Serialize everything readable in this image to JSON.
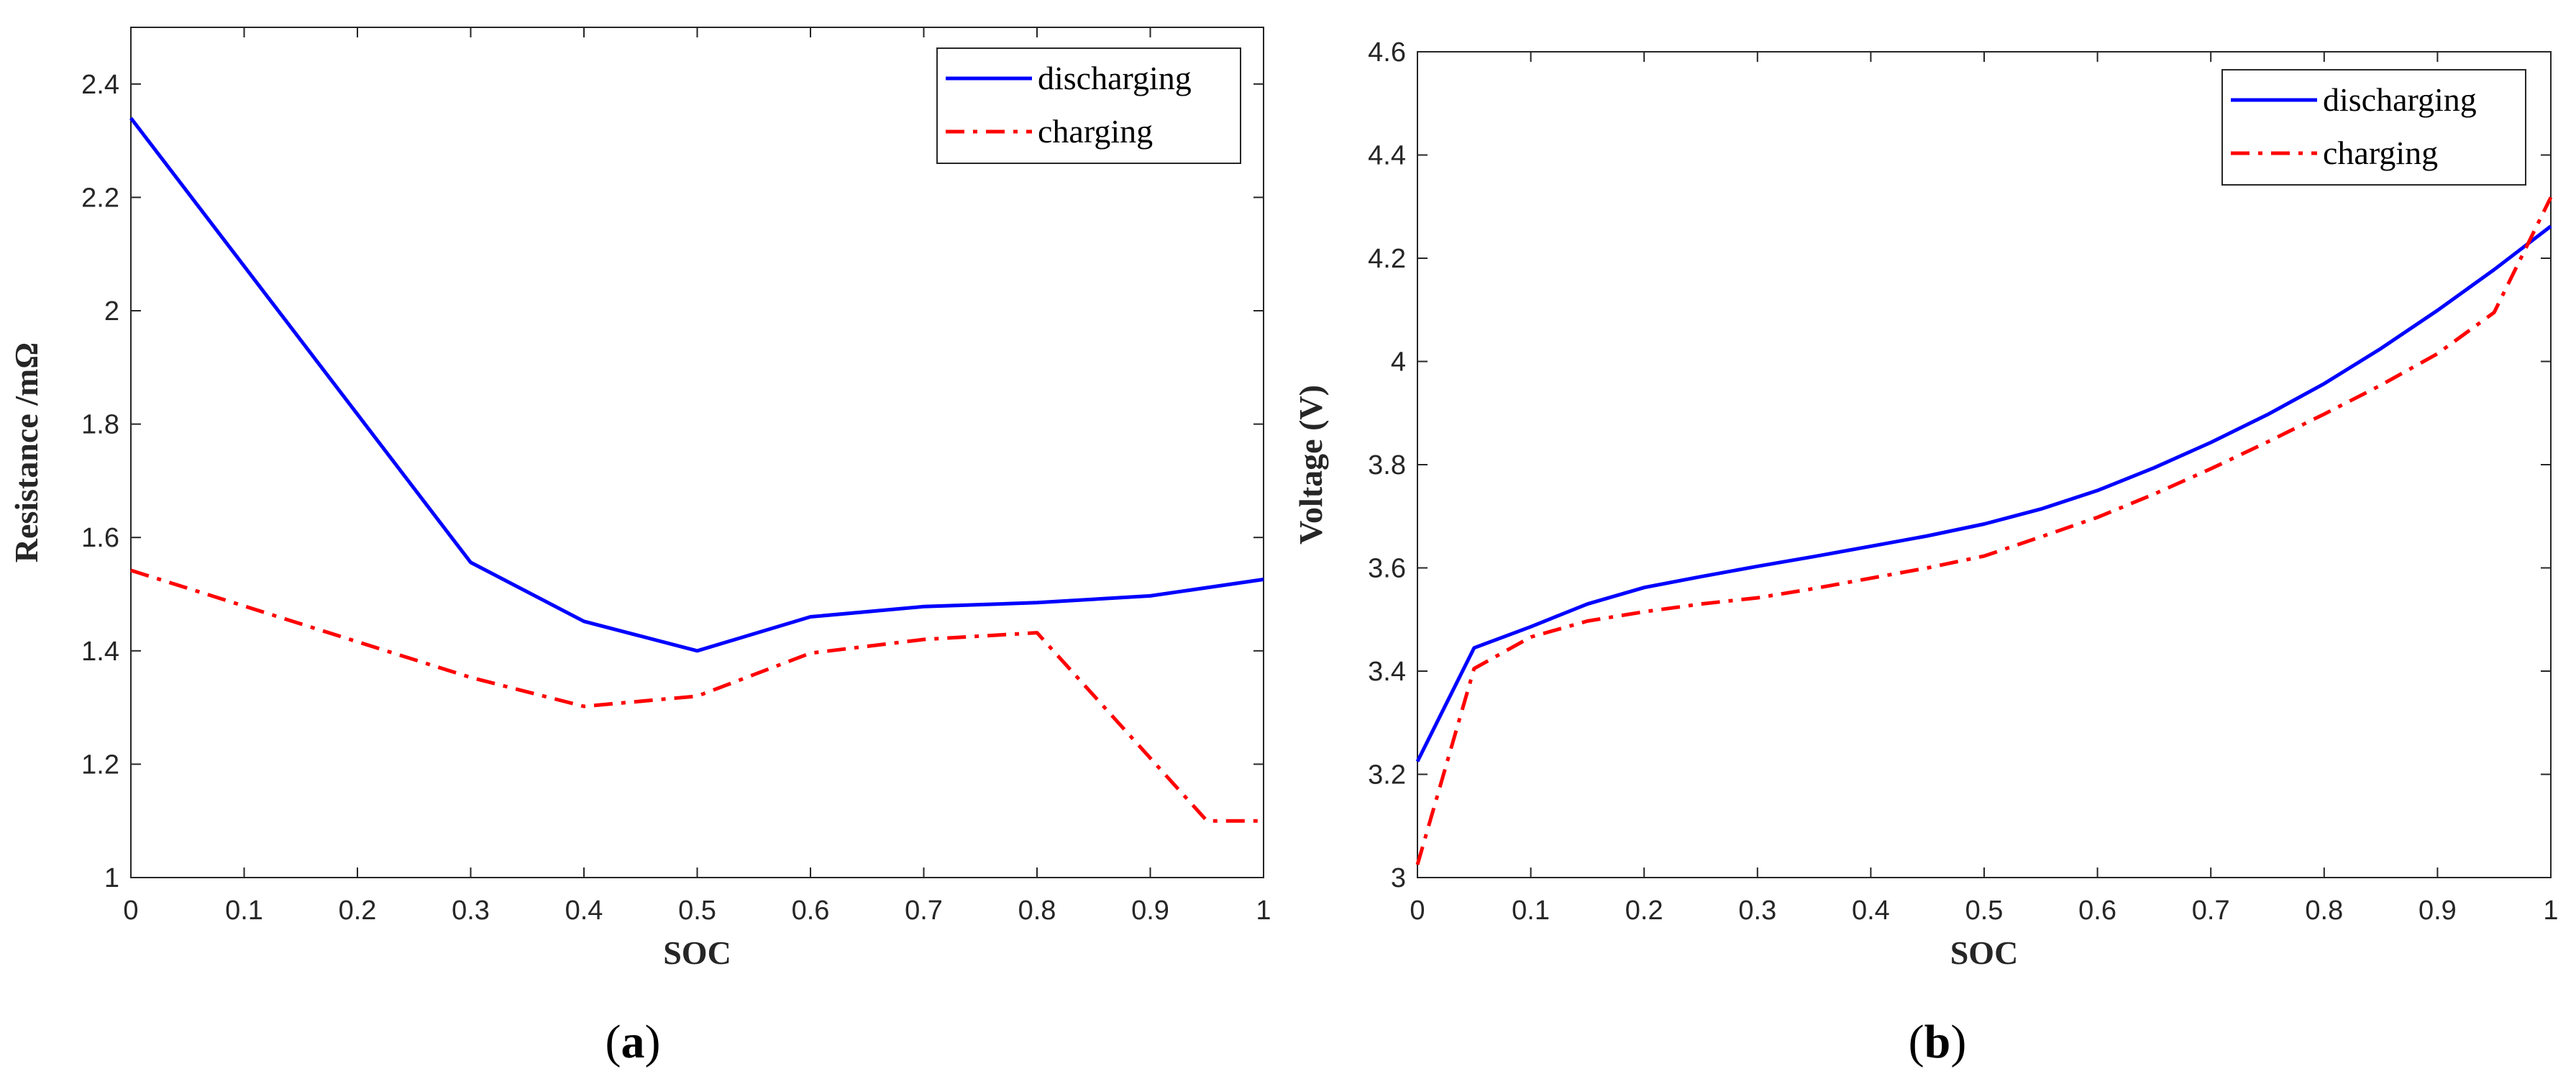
{
  "chart_data": [
    {
      "type": "line",
      "panel": "a",
      "caption_letter": "a",
      "xlabel": "SOC",
      "ylabel": "Resistance /mΩ",
      "xlim": [
        0,
        1
      ],
      "ylim": [
        1,
        2.5
      ],
      "xticks": [
        0,
        0.1,
        0.2,
        0.3,
        0.4,
        0.5,
        0.6,
        0.7,
        0.8,
        0.9,
        1
      ],
      "xtick_labels": [
        "0",
        "0.1",
        "0.2",
        "0.3",
        "0.4",
        "0.5",
        "0.6",
        "0.7",
        "0.8",
        "0.9",
        "1"
      ],
      "yticks": [
        1,
        1.2,
        1.4,
        1.6,
        1.8,
        2,
        2.2,
        2.4
      ],
      "ytick_labels": [
        "1",
        "1.2",
        "1.4",
        "1.6",
        "1.8",
        "2",
        "2.2",
        "2.4"
      ],
      "legend_position": "top-right",
      "series": [
        {
          "name": "discharging",
          "color": "#0000ff",
          "style": "solid",
          "x": [
            0,
            0.3,
            0.4,
            0.5,
            0.6,
            0.7,
            0.8,
            0.9,
            1.0
          ],
          "y": [
            2.34,
            1.556,
            1.452,
            1.4,
            1.46,
            1.478,
            1.485,
            1.497,
            1.526
          ]
        },
        {
          "name": "charging",
          "color": "#ff0000",
          "style": "dashdot",
          "x": [
            0,
            0.1,
            0.2,
            0.3,
            0.4,
            0.5,
            0.6,
            0.7,
            0.8,
            0.95,
            1.0
          ],
          "y": [
            1.542,
            1.479,
            1.416,
            1.353,
            1.302,
            1.32,
            1.396,
            1.42,
            1.432,
            1.1,
            1.1
          ]
        }
      ]
    },
    {
      "type": "line",
      "panel": "b",
      "caption_letter": "b",
      "xlabel": "SOC",
      "ylabel": "Voltage (V)",
      "xlim": [
        0,
        1
      ],
      "ylim": [
        3,
        4.6
      ],
      "xticks": [
        0,
        0.1,
        0.2,
        0.3,
        0.4,
        0.5,
        0.6,
        0.7,
        0.8,
        0.9,
        1
      ],
      "xtick_labels": [
        "0",
        "0.1",
        "0.2",
        "0.3",
        "0.4",
        "0.5",
        "0.6",
        "0.7",
        "0.8",
        "0.9",
        "1"
      ],
      "yticks": [
        3,
        3.2,
        3.4,
        3.6,
        3.8,
        4,
        4.2,
        4.4,
        4.6
      ],
      "ytick_labels": [
        "3",
        "3.2",
        "3.4",
        "3.6",
        "3.8",
        "4",
        "4.2",
        "4.4",
        "4.6"
      ],
      "legend_position": "top-right",
      "series": [
        {
          "name": "discharging",
          "color": "#0000ff",
          "style": "solid",
          "x": [
            0,
            0.05,
            0.1,
            0.15,
            0.2,
            0.25,
            0.3,
            0.35,
            0.4,
            0.45,
            0.5,
            0.55,
            0.6,
            0.65,
            0.7,
            0.75,
            0.8,
            0.85,
            0.9,
            0.95,
            1.0
          ],
          "y": [
            3.225,
            3.445,
            3.486,
            3.53,
            3.562,
            3.583,
            3.603,
            3.622,
            3.642,
            3.662,
            3.685,
            3.714,
            3.75,
            3.794,
            3.843,
            3.897,
            3.957,
            4.025,
            4.099,
            4.178,
            4.262
          ]
        },
        {
          "name": "charging",
          "color": "#ff0000",
          "style": "dashdot",
          "x": [
            0,
            0.05,
            0.1,
            0.15,
            0.2,
            0.25,
            0.3,
            0.35,
            0.4,
            0.45,
            0.5,
            0.55,
            0.6,
            0.65,
            0.7,
            0.75,
            0.8,
            0.85,
            0.9,
            0.95,
            1.0
          ],
          "y": [
            3.025,
            3.405,
            3.466,
            3.497,
            3.515,
            3.53,
            3.542,
            3.56,
            3.58,
            3.6,
            3.623,
            3.66,
            3.698,
            3.743,
            3.792,
            3.844,
            3.898,
            3.954,
            4.015,
            4.095,
            4.318
          ]
        }
      ]
    }
  ]
}
